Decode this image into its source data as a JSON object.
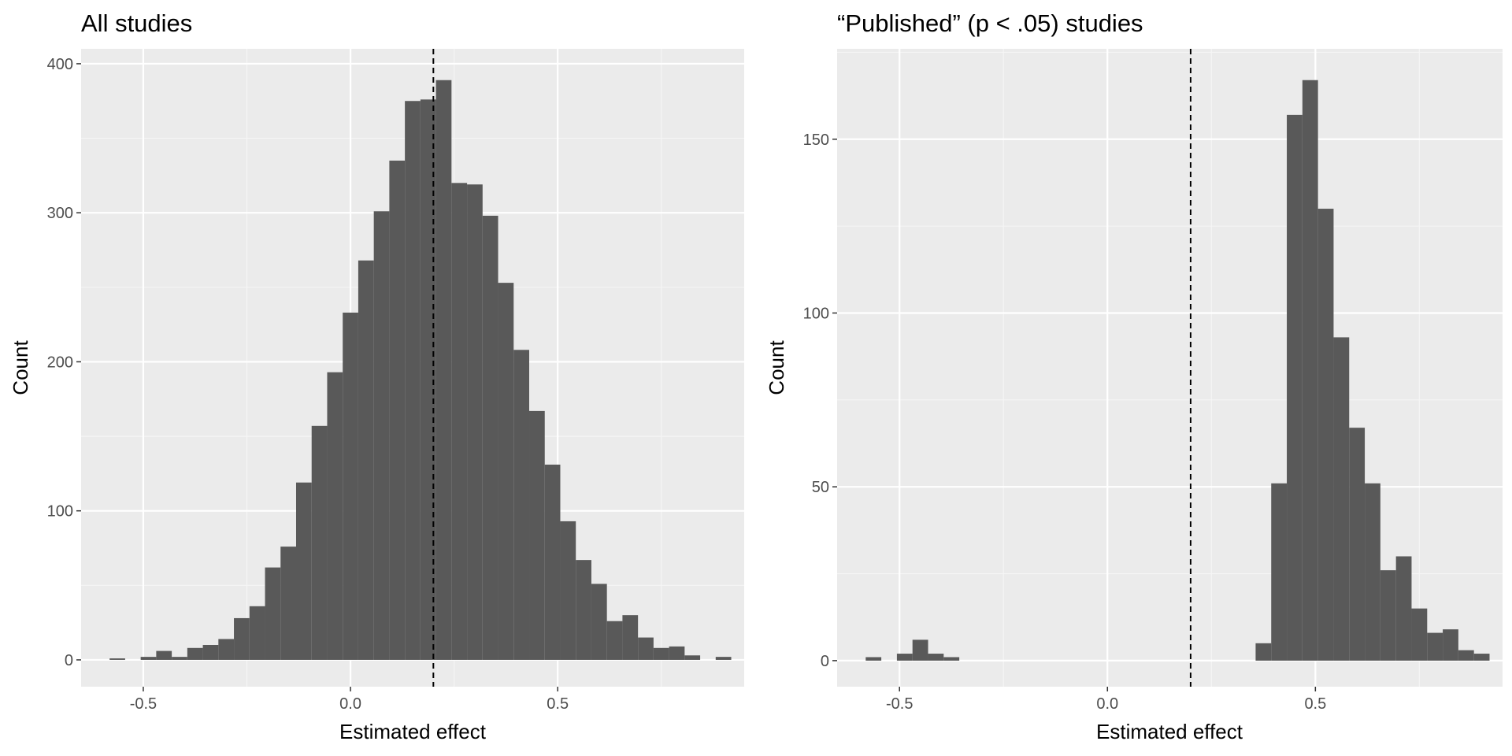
{
  "colors": {
    "panel_background": "#ebebeb",
    "grid_major": "#ffffff",
    "grid_minor": "#f5f5f5",
    "bar_fill": "#595959",
    "tick_text": "#4d4d4d",
    "reference_line": "#000000"
  },
  "chart_data": [
    {
      "type": "bar",
      "subtype": "histogram",
      "title": "All studies",
      "xlabel": "Estimated effect",
      "ylabel": "Count",
      "xlim": [
        -0.65,
        0.95
      ],
      "ylim": [
        -18,
        410
      ],
      "x_ticks": [
        -0.5,
        0.0,
        0.5
      ],
      "x_tick_labels": [
        "-0.5",
        "0.0",
        "0.5"
      ],
      "y_ticks": [
        0,
        100,
        200,
        300,
        400
      ],
      "y_tick_labels": [
        "0",
        "100",
        "200",
        "300",
        "400"
      ],
      "grid": true,
      "reference_line_x": 0.2,
      "bin_width": 0.0375,
      "bin_centers": [
        -0.5625,
        -0.525,
        -0.4875,
        -0.45,
        -0.4125,
        -0.375,
        -0.3375,
        -0.3,
        -0.2625,
        -0.225,
        -0.1875,
        -0.15,
        -0.1125,
        -0.075,
        -0.0375,
        0.0,
        0.0375,
        0.075,
        0.1125,
        0.15,
        0.1875,
        0.225,
        0.2625,
        0.3,
        0.3375,
        0.375,
        0.4125,
        0.45,
        0.4875,
        0.525,
        0.5625,
        0.6,
        0.6375,
        0.675,
        0.7125,
        0.75,
        0.7875,
        0.825,
        0.8625,
        0.9
      ],
      "values": [
        1,
        0,
        2,
        6,
        2,
        8,
        10,
        14,
        28,
        36,
        62,
        76,
        119,
        157,
        193,
        233,
        268,
        301,
        335,
        375,
        376,
        389,
        320,
        319,
        298,
        253,
        208,
        167,
        131,
        93,
        67,
        51,
        26,
        30,
        15,
        8,
        9,
        3,
        0,
        2
      ]
    },
    {
      "type": "bar",
      "subtype": "histogram",
      "title": "“Published” (p < .05) studies",
      "xlabel": "Estimated effect",
      "ylabel": "Count",
      "xlim": [
        -0.65,
        0.95
      ],
      "ylim": [
        -7.5,
        176
      ],
      "x_ticks": [
        -0.5,
        0.0,
        0.5
      ],
      "x_tick_labels": [
        "-0.5",
        "0.0",
        "0.5"
      ],
      "y_ticks": [
        0,
        50,
        100,
        150
      ],
      "y_tick_labels": [
        "0",
        "50",
        "100",
        "150"
      ],
      "grid": true,
      "reference_line_x": 0.2,
      "bin_width": 0.0375,
      "bin_centers": [
        -0.5625,
        -0.525,
        -0.4875,
        -0.45,
        -0.4125,
        -0.375,
        -0.3375,
        -0.3,
        -0.2625,
        -0.225,
        -0.1875,
        -0.15,
        -0.1125,
        -0.075,
        -0.0375,
        0.0,
        0.0375,
        0.075,
        0.1125,
        0.15,
        0.1875,
        0.225,
        0.2625,
        0.3,
        0.3375,
        0.375,
        0.4125,
        0.45,
        0.4875,
        0.525,
        0.5625,
        0.6,
        0.6375,
        0.675,
        0.7125,
        0.75,
        0.7875,
        0.825,
        0.8625,
        0.9
      ],
      "values": [
        1,
        0,
        2,
        6,
        2,
        1,
        0,
        0,
        0,
        0,
        0,
        0,
        0,
        0,
        0,
        0,
        0,
        0,
        0,
        0,
        0,
        0,
        0,
        0,
        0,
        5,
        51,
        157,
        167,
        130,
        93,
        67,
        51,
        26,
        30,
        15,
        8,
        9,
        3,
        2
      ]
    }
  ]
}
